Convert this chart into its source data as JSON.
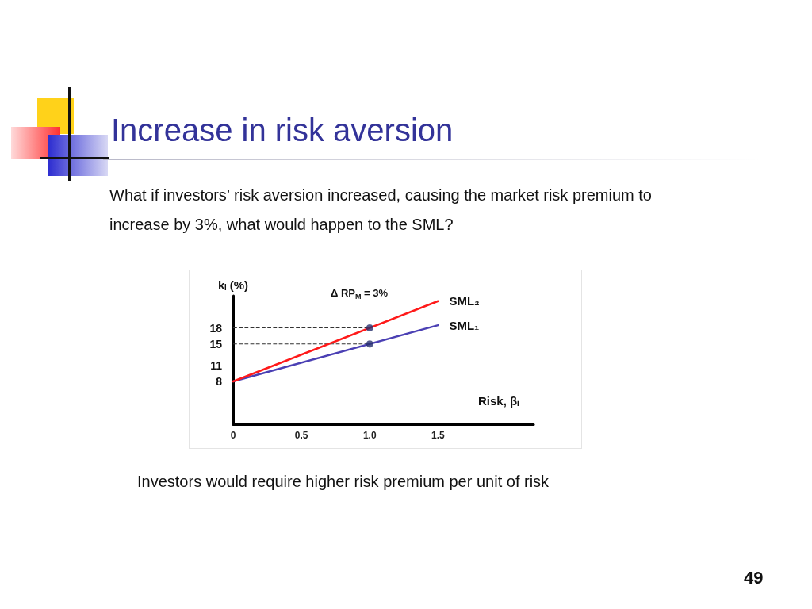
{
  "chart_data": {
    "type": "line",
    "title": "Increase in risk aversion",
    "subtitle": "What if investors’ risk aversion increased, causing the market risk premium to increase by 3%, what would happen to the SML?",
    "xlabel": "Risk, βᵢ",
    "ylabel": "kᵢ (%)",
    "x": [
      0,
      1.5
    ],
    "series": [
      {
        "name": "SML₁",
        "color": "#4b40b4",
        "values": [
          8,
          18.5
        ]
      },
      {
        "name": "SML₂",
        "color": "#ff1a1a",
        "values": [
          8,
          23
        ]
      },
      {
        "type": "scatter",
        "marker": "circle",
        "color": "#27306e",
        "x": [
          1,
          1
        ],
        "values": [
          15,
          18
        ]
      }
    ],
    "xlim": [
      0,
      2.2
    ],
    "xticks": [
      0,
      0.5,
      {
        "value": 1,
        "label": "1.0"
      },
      1.5
    ],
    "ylim": [
      0,
      24
    ],
    "yticks": [
      8,
      11,
      15,
      18
    ],
    "ref_lines": [
      {
        "axis": "y",
        "value": 18,
        "color": "#333333",
        "line_style": "dashed"
      },
      {
        "axis": "y",
        "value": 15,
        "color": "#333333",
        "line_style": "dashed"
      }
    ],
    "marker": "none",
    "line_style": "solid",
    "grid": false,
    "legend": false,
    "annotations": [
      "Δ RP$_{M}$ = 3%",
      "Investors would require higher risk premium per unit of risk",
      "49"
    ]
  }
}
